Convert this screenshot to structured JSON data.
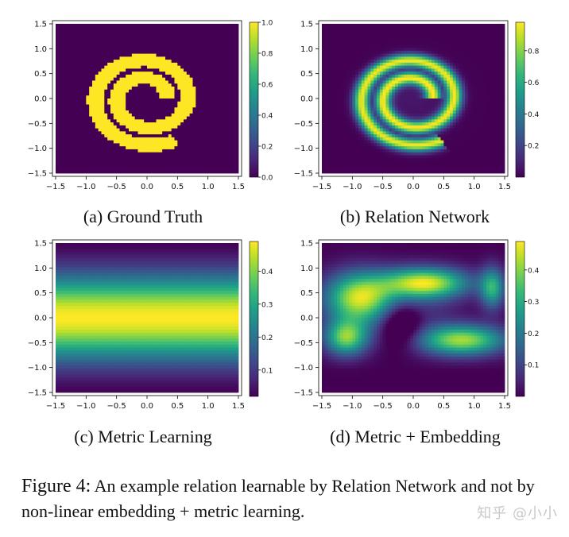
{
  "figure": {
    "label": "Figure 4:",
    "text": "An example relation learnable by Relation Network and not by non-linear embedding + metric learning.",
    "watermark": "知乎 @小小"
  },
  "chart_data": [
    {
      "type": "heatmap",
      "title": "(a) Ground Truth",
      "pattern": "spiral-binary",
      "xlim": [
        -1.5,
        1.5
      ],
      "ylim": [
        -1.5,
        1.5
      ],
      "x_ticks": [
        -1.5,
        -1.0,
        -0.5,
        0.0,
        0.5,
        1.0,
        1.5
      ],
      "y_ticks": [
        -1.5,
        -1.0,
        -0.5,
        0.0,
        0.5,
        1.0,
        1.5
      ],
      "tick_labels": [
        "−1.5",
        "−1.0",
        "−0.5",
        "0.0",
        "0.5",
        "1.0",
        "1.5"
      ],
      "colorbar": {
        "min": 0.0,
        "max": 1.0,
        "ticks": [
          0.0,
          0.2,
          0.4,
          0.6,
          0.8,
          1.0
        ],
        "labels": [
          "0.0",
          "0.2",
          "0.4",
          "0.6",
          "0.8",
          "1.0"
        ]
      },
      "colormap": "viridis"
    },
    {
      "type": "heatmap",
      "title": "(b) Relation Network",
      "pattern": "spiral-blurred",
      "xlim": [
        -1.5,
        1.5
      ],
      "ylim": [
        -1.5,
        1.5
      ],
      "x_ticks": [
        -1.5,
        -1.0,
        -0.5,
        0.0,
        0.5,
        1.0,
        1.5
      ],
      "y_ticks": [
        -1.5,
        -1.0,
        -0.5,
        0.0,
        0.5,
        1.0,
        1.5
      ],
      "tick_labels": [
        "−1.5",
        "−1.0",
        "−0.5",
        "0.0",
        "0.5",
        "1.0",
        "1.5"
      ],
      "colorbar": {
        "min": 0.0,
        "max": 0.98,
        "ticks": [
          0.2,
          0.4,
          0.6,
          0.8
        ],
        "labels": [
          "0.2",
          "0.4",
          "0.6",
          "0.8"
        ]
      },
      "colormap": "viridis"
    },
    {
      "type": "heatmap",
      "title": "(c) Metric Learning",
      "pattern": "horizontal-band",
      "xlim": [
        -1.5,
        1.5
      ],
      "ylim": [
        -1.5,
        1.5
      ],
      "x_ticks": [
        -1.5,
        -1.0,
        -0.5,
        0.0,
        0.5,
        1.0,
        1.5
      ],
      "y_ticks": [
        -1.5,
        -1.0,
        -0.5,
        0.0,
        0.5,
        1.0,
        1.5
      ],
      "tick_labels": [
        "−1.5",
        "−1.0",
        "−0.5",
        "0.0",
        "0.5",
        "1.0",
        "1.5"
      ],
      "colorbar": {
        "min": 0.02,
        "max": 0.49,
        "ticks": [
          0.1,
          0.2,
          0.3,
          0.4
        ],
        "labels": [
          "0.1",
          "0.2",
          "0.3",
          "0.4"
        ]
      },
      "colormap": "viridis"
    },
    {
      "type": "heatmap",
      "title": "(d) Metric + Embedding",
      "pattern": "blobs",
      "xlim": [
        -1.5,
        1.5
      ],
      "ylim": [
        -1.5,
        1.5
      ],
      "x_ticks": [
        -1.5,
        -1.0,
        -0.5,
        0.0,
        0.5,
        1.0,
        1.5
      ],
      "y_ticks": [
        -1.5,
        -1.0,
        -0.5,
        0.0,
        0.5,
        1.0,
        1.5
      ],
      "tick_labels": [
        "−1.5",
        "−1.0",
        "−0.5",
        "0.0",
        "0.5",
        "1.0",
        "1.5"
      ],
      "colorbar": {
        "min": 0.0,
        "max": 0.49,
        "ticks": [
          0.1,
          0.2,
          0.3,
          0.4
        ],
        "labels": [
          "0.1",
          "0.2",
          "0.3",
          "0.4"
        ]
      },
      "colormap": "viridis"
    }
  ]
}
